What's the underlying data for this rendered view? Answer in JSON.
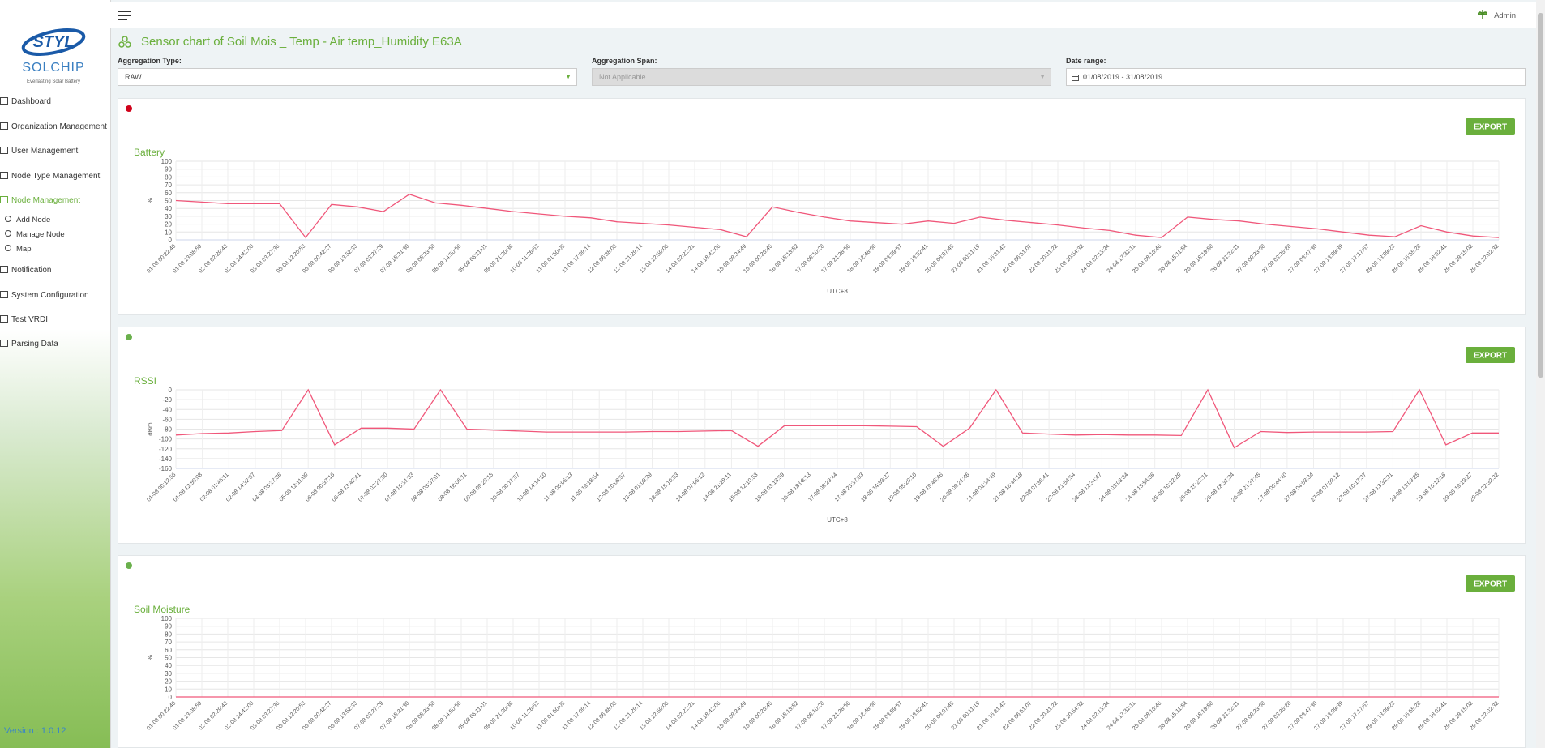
{
  "sidebar": {
    "logo": {
      "brand": "STYL",
      "product": "SOLCHIP",
      "tagline": "Everlasting Solar Battery"
    },
    "menu": [
      "Dashboard",
      "Organization Management",
      "User Management",
      "Node Type Management",
      "Node Management"
    ],
    "submenu": [
      "Add Node",
      "Manage Node",
      "Map"
    ],
    "menu_after": [
      "Notification",
      "System Configuration",
      "Test VRDI",
      "Parsing Data"
    ],
    "version": "Version : 1.0.12"
  },
  "header": {
    "user": "Admin"
  },
  "page_title": "Sensor chart of Soil Mois _ Temp - Air temp_Humidity E63A",
  "filters": [
    {
      "label": "Aggregation Type:",
      "value": "RAW"
    },
    {
      "label": "Aggregation Span:",
      "value": "Not Applicable"
    },
    {
      "label": "Date range:",
      "value": "01/08/2019 - 31/08/2019"
    }
  ],
  "chart_data": [
    {
      "type": "line",
      "title": "Battery",
      "status_color": "#d0021b",
      "export_label": "EXPORT",
      "y_label": "%",
      "x_label": "UTC+8",
      "color": "#f0577a",
      "grid": true,
      "ylim": [
        0,
        100
      ],
      "yticks": [
        0,
        10,
        20,
        30,
        40,
        50,
        60,
        70,
        80,
        90,
        100
      ],
      "categories": [
        "01-08 00:22:40",
        "01-08 13:08:59",
        "02-08 02:20:43",
        "02-08 14:42:00",
        "03-08 03:27:36",
        "05-08 12:20:53",
        "06-08 00:42:27",
        "06-08 13:52:33",
        "07-08 03:27:29",
        "07-08 15:31:30",
        "08-08 05:33:58",
        "08-08 14:50:56",
        "09-08 06:11:01",
        "09-08 21:30:36",
        "10-08 11:26:52",
        "11-08 01:50:05",
        "11-08 17:09:14",
        "12-08 06:38:08",
        "12-08 21:29:14",
        "13-08 12:50:06",
        "14-08 02:22:21",
        "14-08 18:42:06",
        "15-08 09:34:49",
        "16-08 00:26:45",
        "16-08 15:18:52",
        "17-08 06:10:28",
        "17-08 21:28:56",
        "18-08 12:48:06",
        "19-08 03:59:57",
        "19-08 18:52:41",
        "20-08 08:07:45",
        "21-08 00:11:19",
        "21-08 15:31:43",
        "22-08 06:51:07",
        "22-08 20:31:22",
        "23-08 10:54:32",
        "24-08 02:13:24",
        "24-08 17:31:11",
        "25-08 08:16:46",
        "26-08 15:11:54",
        "26-08 18:19:58",
        "26-08 21:22:11",
        "27-08 00:23:08",
        "27-08 03:35:28",
        "27-08 08:47:30",
        "27-08 13:09:39",
        "27-08 17:17:57",
        "29-08 13:09:23",
        "29-08 15:55:28",
        "29-08 18:02:41",
        "29-08 19:15:02",
        "29-08 22:02:32"
      ],
      "values": [
        50,
        48,
        46,
        46,
        46,
        3,
        45,
        42,
        36,
        58,
        47,
        44,
        40,
        36,
        33,
        30,
        28,
        23,
        21,
        19,
        16,
        13,
        4,
        42,
        35,
        29,
        24,
        22,
        20,
        24,
        21,
        29,
        25,
        22,
        19,
        15,
        12,
        6,
        3,
        29,
        26,
        24,
        20,
        17,
        14,
        10,
        6,
        4,
        18,
        10,
        5,
        3
      ]
    },
    {
      "type": "line",
      "title": "RSSI",
      "status_color": "#6ab04c",
      "export_label": "EXPORT",
      "y_label": "dBm",
      "x_label": "UTC+8",
      "color": "#f0577a",
      "grid": true,
      "ylim": [
        -160,
        0
      ],
      "yticks": [
        -160,
        -140,
        -120,
        -100,
        -80,
        -60,
        -40,
        -20,
        0
      ],
      "categories": [
        "01-08 00:12:56",
        "01-08 12:59:08",
        "02-08 01:46:11",
        "02-08 14:32:07",
        "03-08 03:27:36",
        "05-08 12:11:00",
        "06-08 00:37:16",
        "06-08 13:42:41",
        "07-08 02:27:50",
        "07-08 15:31:33",
        "08-08 03:37:01",
        "08-08 18:06:11",
        "09-08 09:29:15",
        "10-08 00:17:57",
        "10-08 14:14:10",
        "11-08 05:05:13",
        "11-08 19:18:54",
        "12-08 10:08:57",
        "13-08 01:09:29",
        "13-08 15:10:53",
        "14-08 07:05:12",
        "14-08 21:29:11",
        "15-08 12:10:53",
        "16-08 03:13:59",
        "16-08 18:08:13",
        "17-08 08:29:44",
        "17-08 23:37:03",
        "18-08 14:39:37",
        "19-08 05:20:10",
        "19-08 19:48:46",
        "20-08 09:21:46",
        "21-08 01:34:49",
        "21-08 16:44:18",
        "22-08 07:36:41",
        "22-08 21:54:54",
        "23-08 12:34:47",
        "24-08 03:03:34",
        "24-08 18:54:36",
        "25-08 10:12:29",
        "26-08 15:22:11",
        "26-08 18:31:34",
        "26-08 21:37:45",
        "27-08 00:44:40",
        "27-08 04:03:34",
        "27-08 07:09:12",
        "27-08 10:17:37",
        "27-08 13:33:31",
        "29-08 13:09:25",
        "29-08 16:12:16",
        "29-08 19:19:27",
        "29-08 22:32:32"
      ],
      "values": [
        -92,
        -89,
        -88,
        -85,
        -83,
        0,
        -112,
        -78,
        -78,
        -80,
        0,
        -80,
        -82,
        -84,
        -86,
        -86,
        -86,
        -86,
        -85,
        -85,
        -84,
        -83,
        -115,
        -73,
        -73,
        -73,
        -73,
        -74,
        -75,
        -115,
        -78,
        0,
        -88,
        -90,
        -92,
        -91,
        -92,
        -92,
        -93,
        0,
        -118,
        -85,
        -87,
        -86,
        -86,
        -86,
        -85,
        0,
        -112,
        -88,
        -88
      ]
    },
    {
      "type": "line",
      "title": "Soil Moisture",
      "status_color": "#6ab04c",
      "export_label": "EXPORT",
      "y_label": "%",
      "color": "#f0577a",
      "grid": true,
      "ylim": [
        0,
        100
      ],
      "yticks": [
        0,
        10,
        20,
        30,
        40,
        50,
        60,
        70,
        80,
        90,
        100
      ],
      "categories": [
        "01-08 00:22:40",
        "01-08 13:08:59",
        "02-08 02:20:43",
        "02-08 14:42:00",
        "03-08 03:27:36",
        "05-08 12:20:53",
        "06-08 00:42:27",
        "06-08 13:52:33",
        "07-08 03:27:29",
        "07-08 15:31:30",
        "08-08 05:33:58",
        "08-08 14:50:56",
        "09-08 06:11:01",
        "09-08 21:30:36",
        "10-08 11:26:52",
        "11-08 01:50:05",
        "11-08 17:09:14",
        "12-08 06:38:08",
        "12-08 21:29:14",
        "13-08 12:50:06",
        "14-08 02:22:21",
        "14-08 18:42:06",
        "15-08 09:34:49",
        "16-08 00:26:45",
        "16-08 15:18:52",
        "17-08 06:10:28",
        "17-08 21:28:56",
        "18-08 12:48:06",
        "19-08 03:59:57",
        "19-08 18:52:41",
        "20-08 08:07:45",
        "21-08 00:11:19",
        "21-08 15:31:43",
        "22-08 06:51:07",
        "22-08 20:31:22",
        "23-08 10:54:32",
        "24-08 02:13:24",
        "24-08 17:31:11",
        "25-08 08:16:46",
        "26-08 15:11:54",
        "26-08 18:19:58",
        "26-08 21:22:11",
        "27-08 00:23:08",
        "27-08 03:35:28",
        "27-08 08:47:30",
        "27-08 13:09:39",
        "27-08 17:17:57",
        "29-08 13:09:23",
        "29-08 15:55:28",
        "29-08 18:02:41",
        "29-08 19:15:02",
        "29-08 22:02:32"
      ],
      "values": [
        0,
        0,
        0,
        0,
        0,
        0,
        0,
        0,
        0,
        0,
        0,
        0,
        0,
        0,
        0,
        0,
        0,
        0,
        0,
        0,
        0,
        0,
        0,
        0,
        0,
        0,
        0,
        0,
        0,
        0,
        0,
        0,
        0,
        0,
        0,
        0,
        0,
        0,
        0,
        0,
        0,
        0,
        0,
        0,
        0,
        0,
        0,
        0,
        0,
        0,
        0,
        0
      ]
    }
  ]
}
